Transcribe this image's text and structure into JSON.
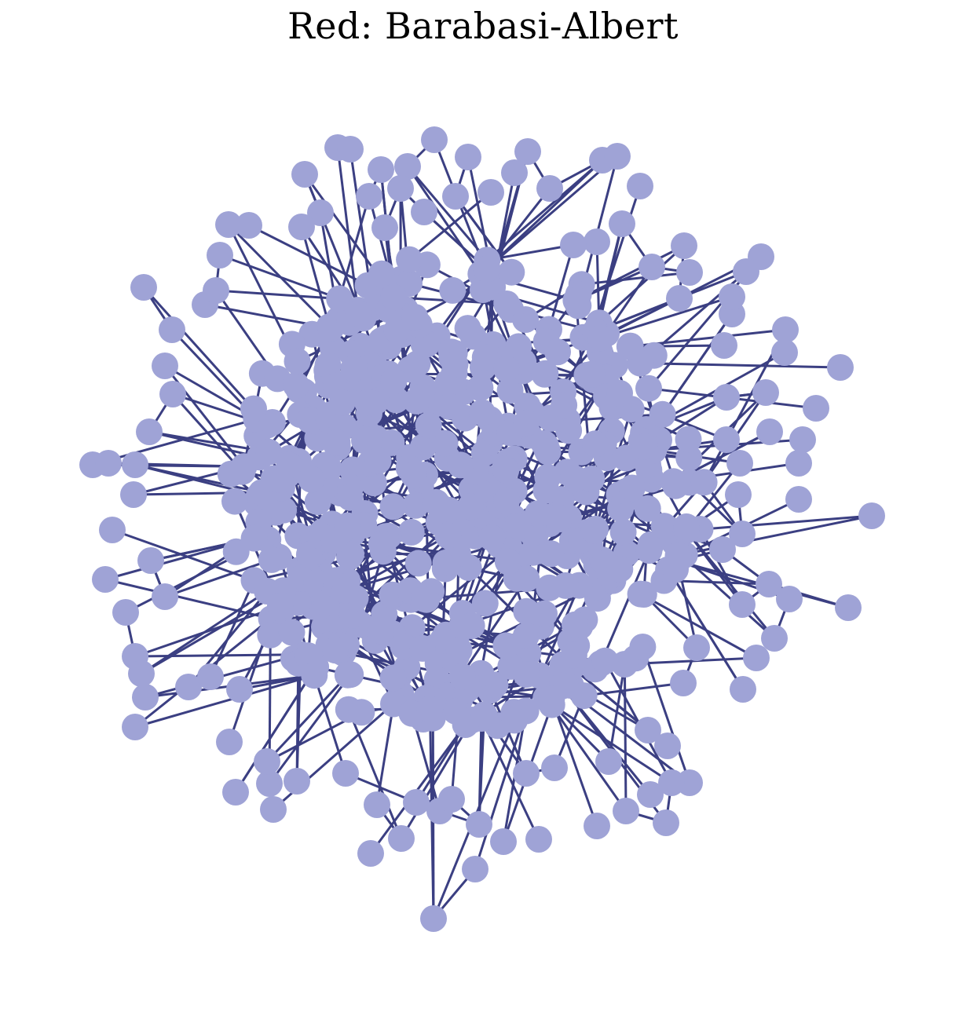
{
  "title": "Red: Barabasi-Albert",
  "colors": {
    "node_fill": "#9fa3d6",
    "edge_stroke": "#3b3f82",
    "background": "#ffffff"
  },
  "graph": {
    "model": "Barabasi-Albert",
    "directed": false
  }
}
